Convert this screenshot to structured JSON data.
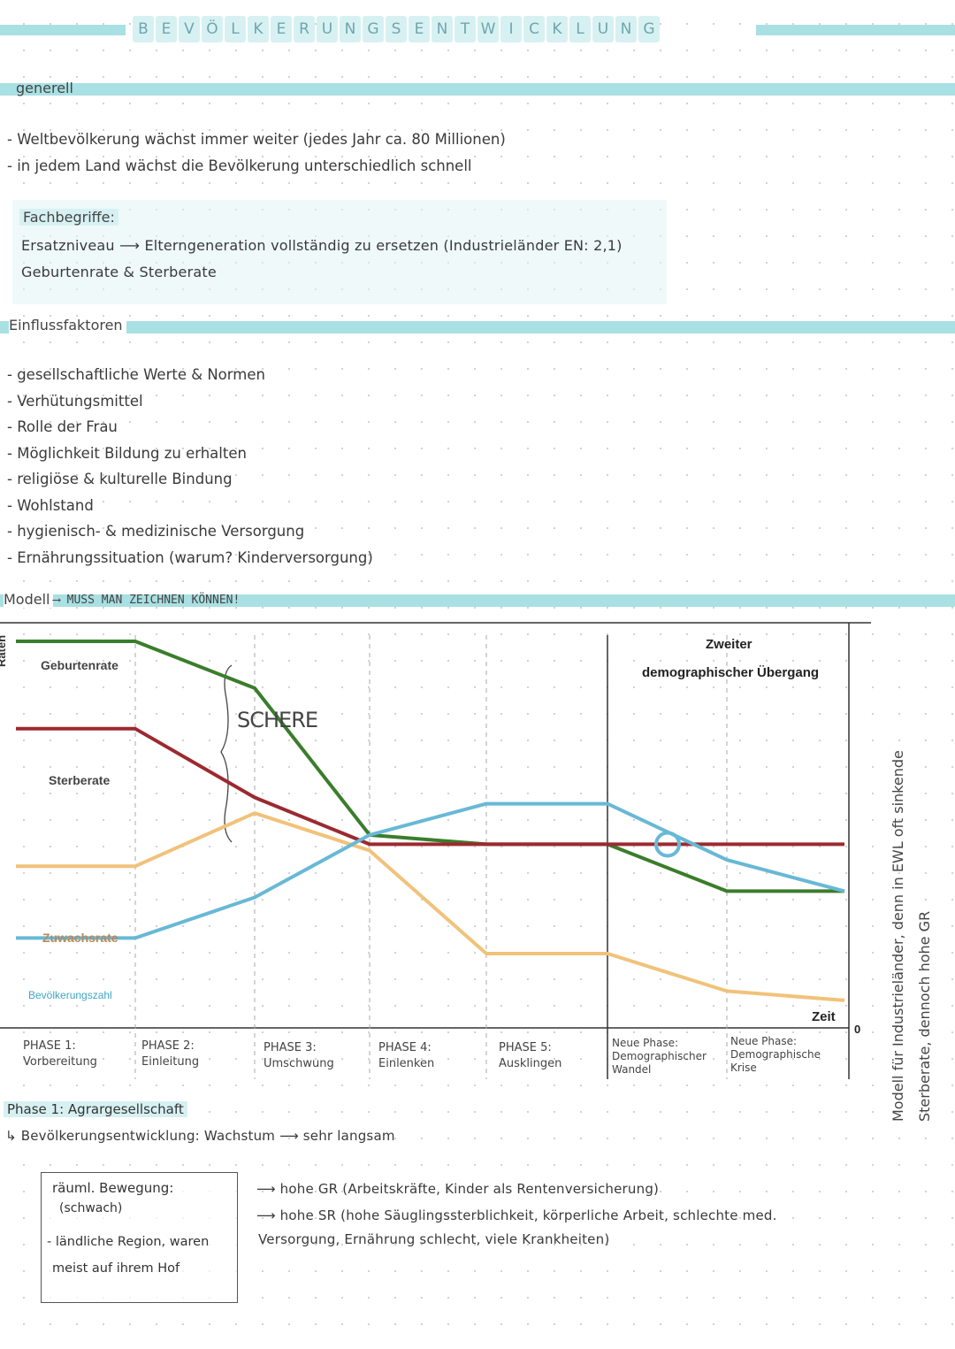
{
  "title": {
    "letters": [
      "B",
      "E",
      "V",
      "Ö",
      "L",
      "K",
      "E",
      "R",
      "U",
      "N",
      "G",
      "S",
      "E",
      "N",
      "T",
      "W",
      "I",
      "C",
      "K",
      "L",
      "U",
      "N",
      "G"
    ]
  },
  "generell": {
    "label": "generell",
    "items": [
      "Weltbevölkerung wächst immer weiter (jedes Jahr ca. 80 Millionen)",
      "in jedem Land wächst die Bevölkerung unterschiedlich schnell"
    ]
  },
  "fachbegriffe": {
    "label": "Fachbegriffe:",
    "line1": "Ersatzniveau ⟶ Elterngeneration vollständig zu ersetzen (Industrieländer EN: 2,1)",
    "line2": "Geburtenrate & Sterberate"
  },
  "einflussfaktoren": {
    "label": "Einflussfaktoren",
    "items": [
      "gesellschaftliche Werte & Normen",
      "Verhütungsmittel",
      "Rolle der Frau",
      "Möglichkeit Bildung zu erhalten",
      "religiöse & kulturelle Bindung",
      "Wohlstand",
      "hygienisch- & medizinische Versorgung",
      "Ernährungssituation (warum? Kinderversorgung)"
    ]
  },
  "modell": {
    "label": "Modell",
    "note": "⟶ MUSS MAN ZEICHNEN KÖNNEN!"
  },
  "chart_data": {
    "type": "line",
    "ylabel": "Raten",
    "xlabel": "Zeit",
    "y_zero_label": "0",
    "annotation_schere": "SCHERE",
    "second_transition": [
      "Zweiter",
      "demographischer Übergang"
    ],
    "x": [
      0,
      1,
      2,
      3,
      4,
      5,
      6,
      7
    ],
    "series": [
      {
        "name": "Geburtenrate",
        "color": "#3a7d2c",
        "values": [
          100,
          100,
          85,
          38,
          35,
          35,
          20,
          20
        ]
      },
      {
        "name": "Sterberate",
        "color": "#9b2a30",
        "values": [
          72,
          72,
          50,
          35,
          35,
          35,
          35,
          35
        ]
      },
      {
        "name": "Zuwachsrate",
        "color": "#f1c27a",
        "values": [
          28,
          28,
          45,
          33,
          0,
          0,
          -12,
          -15
        ]
      },
      {
        "name": "Bevölkerungszahl",
        "color": "#68b8d6",
        "values": [
          5,
          5,
          18,
          38,
          48,
          48,
          30,
          20
        ]
      }
    ],
    "phases": [
      {
        "label": "PHASE 1:",
        "desc": "Vorbereitung"
      },
      {
        "label": "PHASE 2:",
        "desc": "Einleitung"
      },
      {
        "label": "PHASE 3:",
        "desc": "Umschwung"
      },
      {
        "label": "PHASE 4:",
        "desc": "Einlenken"
      },
      {
        "label": "PHASE 5:",
        "desc": "Ausklingen"
      },
      {
        "label": "Neue Phase:",
        "desc": "Demographischer Wandel"
      },
      {
        "label": "Neue Phase:",
        "desc": "Demographische Krise"
      }
    ],
    "grid": false,
    "legend": "inline-left"
  },
  "side_note": {
    "line1": "Modell für Industrieländer, denn in EWL oft sinkende",
    "line2": "Sterberate, dennoch hohe GR"
  },
  "phase1": {
    "heading": "Phase 1: Agrargesellschaft",
    "sub": "↳ Bevölkerungsentwicklung: Wachstum ⟶ sehr langsam",
    "box_title": "räuml. Bewegung:",
    "box_sub": "(schwach)",
    "box_line1": "- ländliche Region, waren",
    "box_line2": "meist auf ihrem Hof",
    "point1": "⟶ hohe GR (Arbeitskräfte, Kinder als Rentenversicherung)",
    "point2": "⟶ hohe SR (hohe Säuglingssterblichkeit, körperliche Arbeit, schlechte med.",
    "point3": "Versorgung, Ernährung schlecht, viele Krankheiten)"
  }
}
